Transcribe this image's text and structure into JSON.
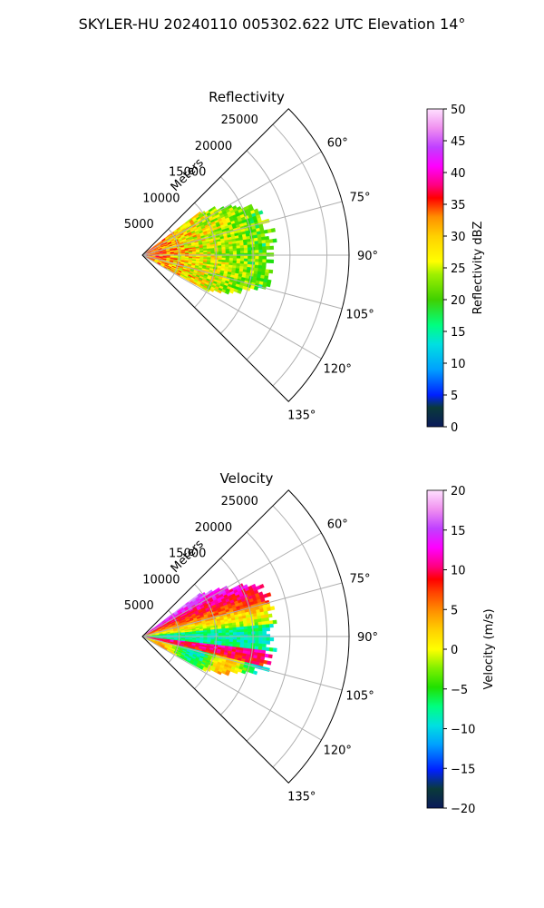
{
  "suptitle": "SKYLER-HU  20240110  005302.622 UTC Elevation 14°",
  "chart_data": [
    {
      "type": "heatmap",
      "title": "Reflectivity",
      "radial_label": "Meters",
      "r_ticks": [
        5000,
        10000,
        15000,
        20000,
        25000
      ],
      "r_tick_labels": [
        "5000",
        "10000",
        "15000",
        "20000",
        "25000"
      ],
      "rlim": [
        0,
        28000
      ],
      "azimuth_ticks": [
        60,
        75,
        90,
        105,
        120,
        135
      ],
      "azimuth_tick_labels": [
        "60°",
        "75°",
        "90°",
        "105°",
        "120°",
        "135°"
      ],
      "azimuth_range_deg": [
        45,
        135
      ],
      "grid": true,
      "colorbar": {
        "label": "Reflectivity dBZ",
        "range": [
          0,
          50
        ],
        "ticks": [
          0,
          5,
          10,
          15,
          20,
          25,
          30,
          35,
          40,
          45,
          50
        ],
        "tick_labels": [
          "0",
          "5",
          "10",
          "15",
          "20",
          "25",
          "30",
          "35",
          "40",
          "45",
          "50"
        ]
      },
      "field": {
        "description_values": "Values mostly 18–38 dBZ; echoes extend to ~16000–17500 m between azimuths ~55° and ~115°; strongest (30–38 dBZ) within ~8000 m",
        "azimuth_extent_deg": [
          53,
          118
        ],
        "max_range_m": 17500
      }
    },
    {
      "type": "heatmap",
      "title": "Velocity",
      "radial_label": "Meters",
      "r_ticks": [
        5000,
        10000,
        15000,
        20000,
        25000
      ],
      "r_tick_labels": [
        "5000",
        "10000",
        "15000",
        "20000",
        "25000"
      ],
      "rlim": [
        0,
        28000
      ],
      "azimuth_ticks": [
        60,
        75,
        90,
        105,
        120,
        135
      ],
      "azimuth_tick_labels": [
        "60°",
        "75°",
        "90°",
        "105°",
        "120°",
        "135°"
      ],
      "azimuth_range_deg": [
        45,
        135
      ],
      "grid": true,
      "colorbar": {
        "label": "Velocity (m/s)",
        "range": [
          -20,
          20
        ],
        "ticks": [
          -20,
          -15,
          -10,
          -5,
          0,
          5,
          10,
          15,
          20
        ],
        "tick_labels": [
          "−20",
          "−15",
          "−10",
          "−5",
          "0",
          "5",
          "10",
          "15",
          "20"
        ]
      },
      "field": {
        "description_values": "Positive velocities (5–15 m/s) on northern flank, near-zero to negative (-5 to -10 m/s) along center band near 90°, mixed on southern flank",
        "azimuth_extent_deg": [
          53,
          118
        ],
        "max_range_m": 17500
      }
    }
  ]
}
